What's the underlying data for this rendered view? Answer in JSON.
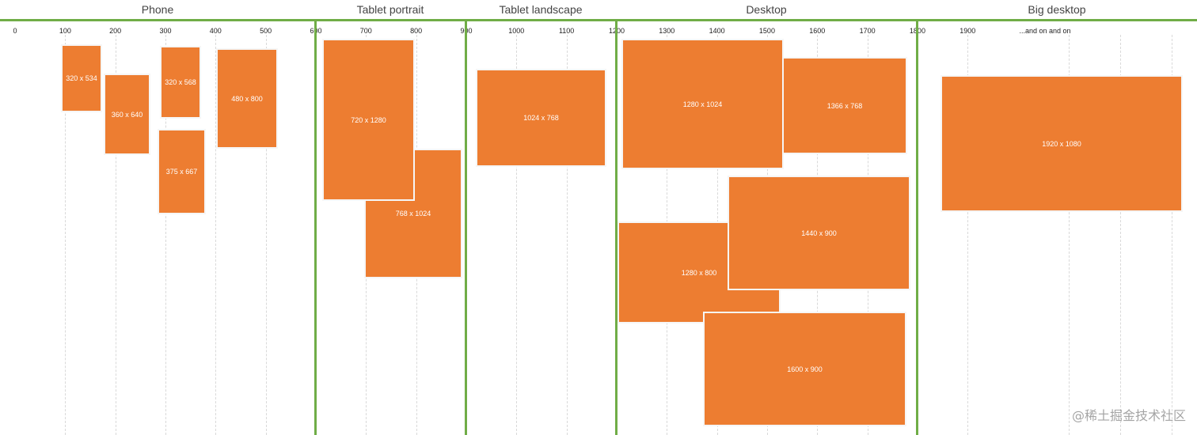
{
  "categories": [
    {
      "label": "Phone"
    },
    {
      "label": "Tablet portrait"
    },
    {
      "label": "Tablet landscape"
    },
    {
      "label": "Desktop"
    },
    {
      "label": "Big desktop"
    }
  ],
  "ticks": [
    {
      "value": 0,
      "label": "0"
    },
    {
      "value": 100,
      "label": "100"
    },
    {
      "value": 200,
      "label": "200"
    },
    {
      "value": 300,
      "label": "300"
    },
    {
      "value": 400,
      "label": "400"
    },
    {
      "value": 500,
      "label": "500"
    },
    {
      "value": 600,
      "label": "600"
    },
    {
      "value": 700,
      "label": "700"
    },
    {
      "value": 800,
      "label": "800"
    },
    {
      "value": 900,
      "label": "900"
    },
    {
      "value": 1000,
      "label": "1000"
    },
    {
      "value": 1100,
      "label": "1100"
    },
    {
      "value": 1200,
      "label": "1200"
    },
    {
      "value": 1300,
      "label": "1300"
    },
    {
      "value": 1400,
      "label": "1400"
    },
    {
      "value": 1500,
      "label": "1500"
    },
    {
      "value": 1600,
      "label": "1600"
    },
    {
      "value": 1700,
      "label": "1700"
    },
    {
      "value": 1800,
      "label": "1800"
    },
    {
      "value": 1900,
      "label": "1900"
    },
    {
      "value": 2000,
      "label": "...and on and on"
    }
  ],
  "breakpoints": [
    600,
    900,
    1200,
    1800
  ],
  "devices": [
    {
      "label": "320 x 534",
      "category": "Phone"
    },
    {
      "label": "360 x 640",
      "category": "Phone"
    },
    {
      "label": "320 x 568",
      "category": "Phone"
    },
    {
      "label": "375 x 667",
      "category": "Phone"
    },
    {
      "label": "480 x 800",
      "category": "Phone"
    },
    {
      "label": "768 x 1024",
      "category": "Tablet portrait"
    },
    {
      "label": "720 x 1280",
      "category": "Tablet portrait"
    },
    {
      "label": "1024 x 768",
      "category": "Tablet landscape"
    },
    {
      "label": "1280 x 1024",
      "category": "Desktop"
    },
    {
      "label": "1366 x 768",
      "category": "Desktop"
    },
    {
      "label": "1280 x 800",
      "category": "Desktop"
    },
    {
      "label": "1440 x 900",
      "category": "Desktop"
    },
    {
      "label": "1600 x 900",
      "category": "Desktop"
    },
    {
      "label": "1920 x 1080",
      "category": "Big desktop"
    }
  ],
  "watermark": "@稀土掘金技术社区",
  "colors": {
    "box": "#ed7d31",
    "divider": "#70ad47"
  }
}
